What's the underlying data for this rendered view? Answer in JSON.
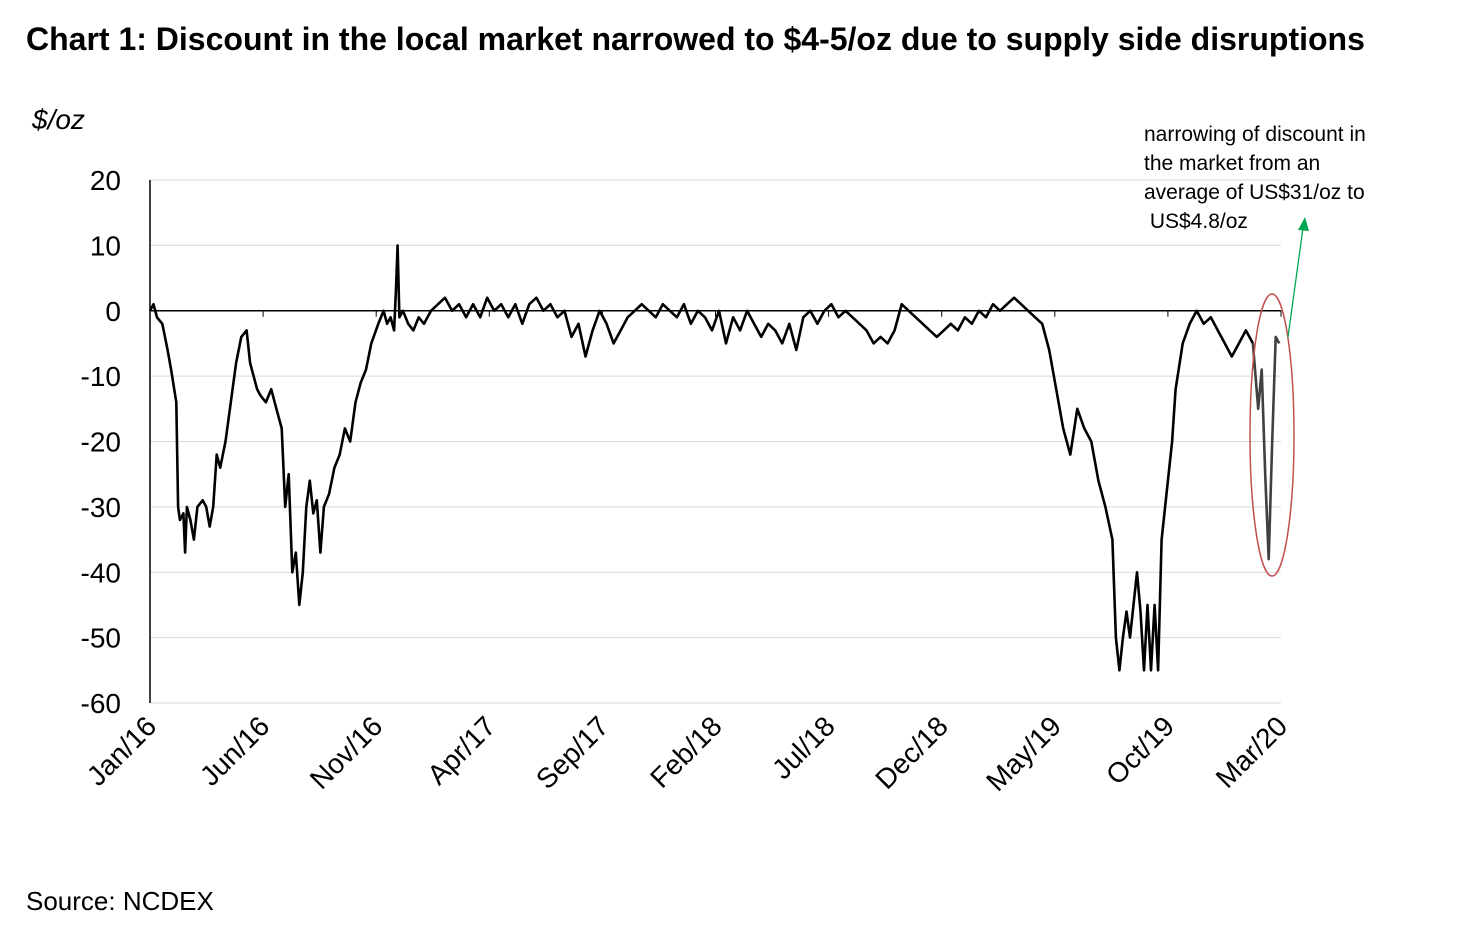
{
  "chart_data": {
    "type": "line",
    "title": "Chart 1: Discount in the local market narrowed to $4-5/oz due to supply side disruptions",
    "ylabel": "$/oz",
    "xlabel": "",
    "ylim": [
      -60,
      20
    ],
    "yticks": [
      20,
      10,
      0,
      -10,
      -20,
      -30,
      -40,
      -50,
      -60
    ],
    "xticks": [
      "Jan/16",
      "Jun/16",
      "Nov/16",
      "Apr/17",
      "Sep/17",
      "Feb/18",
      "Jul/18",
      "Dec/18",
      "May/19",
      "Oct/19",
      "Mar/20"
    ],
    "grid": true,
    "legend": "none",
    "annotation": "narrowing of discount in\nthe market from an\naverage of US$31/oz to\n US$4.8/oz",
    "colors": {
      "line": "#000000",
      "highlight": "#404040",
      "circle": "#c0504d",
      "arrow": "#00a651",
      "grid": "#d9d9d9"
    },
    "series": [
      {
        "values": [
          [
            0.0,
            0
          ],
          [
            0.1,
            1
          ],
          [
            0.2,
            -1
          ],
          [
            0.35,
            -2
          ],
          [
            0.5,
            -6
          ],
          [
            0.6,
            -9
          ],
          [
            0.75,
            -14
          ],
          [
            0.8,
            -30
          ],
          [
            0.85,
            -32
          ],
          [
            0.95,
            -31
          ],
          [
            1.0,
            -37
          ],
          [
            1.05,
            -30
          ],
          [
            1.15,
            -32
          ],
          [
            1.25,
            -35
          ],
          [
            1.35,
            -30
          ],
          [
            1.5,
            -29
          ],
          [
            1.6,
            -30
          ],
          [
            1.7,
            -33
          ],
          [
            1.8,
            -30
          ],
          [
            1.9,
            -22
          ],
          [
            2.0,
            -24
          ],
          [
            2.15,
            -20
          ],
          [
            2.3,
            -14
          ],
          [
            2.45,
            -8
          ],
          [
            2.6,
            -4
          ],
          [
            2.75,
            -3
          ],
          [
            2.85,
            -8
          ],
          [
            2.95,
            -10
          ],
          [
            3.05,
            -12
          ],
          [
            3.15,
            -13
          ],
          [
            3.3,
            -14
          ],
          [
            3.45,
            -12
          ],
          [
            3.6,
            -15
          ],
          [
            3.75,
            -18
          ],
          [
            3.85,
            -30
          ],
          [
            3.95,
            -25
          ],
          [
            4.05,
            -40
          ],
          [
            4.15,
            -37
          ],
          [
            4.25,
            -45
          ],
          [
            4.35,
            -40
          ],
          [
            4.45,
            -30
          ],
          [
            4.55,
            -26
          ],
          [
            4.65,
            -31
          ],
          [
            4.75,
            -29
          ],
          [
            4.85,
            -37
          ],
          [
            4.95,
            -30
          ],
          [
            5.1,
            -28
          ],
          [
            5.25,
            -24
          ],
          [
            5.4,
            -22
          ],
          [
            5.55,
            -18
          ],
          [
            5.7,
            -20
          ],
          [
            5.85,
            -14
          ],
          [
            6.0,
            -11
          ],
          [
            6.15,
            -9
          ],
          [
            6.3,
            -5
          ],
          [
            6.5,
            -2
          ],
          [
            6.65,
            0
          ],
          [
            6.75,
            -2
          ],
          [
            6.85,
            -1
          ],
          [
            6.95,
            -3
          ],
          [
            7.0,
            3
          ],
          [
            7.05,
            10
          ],
          [
            7.1,
            -1
          ],
          [
            7.2,
            0
          ],
          [
            7.35,
            -2
          ],
          [
            7.5,
            -3
          ],
          [
            7.65,
            -1
          ],
          [
            7.8,
            -2
          ],
          [
            8.0,
            0
          ],
          [
            8.2,
            1
          ],
          [
            8.4,
            2
          ],
          [
            8.6,
            0
          ],
          [
            8.8,
            1
          ],
          [
            9.0,
            -1
          ],
          [
            9.2,
            1
          ],
          [
            9.4,
            -1
          ],
          [
            9.6,
            2
          ],
          [
            9.8,
            0
          ],
          [
            10.0,
            1
          ],
          [
            10.2,
            -1
          ],
          [
            10.4,
            1
          ],
          [
            10.6,
            -2
          ],
          [
            10.8,
            1
          ],
          [
            11.0,
            2
          ],
          [
            11.2,
            0
          ],
          [
            11.4,
            1
          ],
          [
            11.6,
            -1
          ],
          [
            11.8,
            0
          ],
          [
            12.0,
            -4
          ],
          [
            12.2,
            -2
          ],
          [
            12.4,
            -7
          ],
          [
            12.6,
            -3
          ],
          [
            12.8,
            0
          ],
          [
            13.0,
            -2
          ],
          [
            13.2,
            -5
          ],
          [
            13.4,
            -3
          ],
          [
            13.6,
            -1
          ],
          [
            13.8,
            0
          ],
          [
            14.0,
            1
          ],
          [
            14.2,
            0
          ],
          [
            14.4,
            -1
          ],
          [
            14.6,
            1
          ],
          [
            14.8,
            0
          ],
          [
            15.0,
            -1
          ],
          [
            15.2,
            1
          ],
          [
            15.4,
            -2
          ],
          [
            15.6,
            0
          ],
          [
            15.8,
            -1
          ],
          [
            16.0,
            -3
          ],
          [
            16.2,
            0
          ],
          [
            16.4,
            -5
          ],
          [
            16.6,
            -1
          ],
          [
            16.8,
            -3
          ],
          [
            17.0,
            0
          ],
          [
            17.2,
            -2
          ],
          [
            17.4,
            -4
          ],
          [
            17.6,
            -2
          ],
          [
            17.8,
            -3
          ],
          [
            18.0,
            -5
          ],
          [
            18.2,
            -2
          ],
          [
            18.4,
            -6
          ],
          [
            18.6,
            -1
          ],
          [
            18.8,
            0
          ],
          [
            19.0,
            -2
          ],
          [
            19.2,
            0
          ],
          [
            19.4,
            1
          ],
          [
            19.6,
            -1
          ],
          [
            19.8,
            0
          ],
          [
            20.0,
            -1
          ],
          [
            20.2,
            -2
          ],
          [
            20.4,
            -3
          ],
          [
            20.6,
            -5
          ],
          [
            20.8,
            -4
          ],
          [
            21.0,
            -5
          ],
          [
            21.2,
            -3
          ],
          [
            21.4,
            1
          ],
          [
            21.6,
            0
          ],
          [
            21.8,
            -1
          ],
          [
            22.0,
            -2
          ],
          [
            22.2,
            -3
          ],
          [
            22.4,
            -4
          ],
          [
            22.6,
            -3
          ],
          [
            22.8,
            -2
          ],
          [
            23.0,
            -3
          ],
          [
            23.2,
            -1
          ],
          [
            23.4,
            -2
          ],
          [
            23.6,
            0
          ],
          [
            23.8,
            -1
          ],
          [
            24.0,
            1
          ],
          [
            24.2,
            0
          ],
          [
            24.4,
            1
          ],
          [
            24.6,
            2
          ],
          [
            24.8,
            1
          ],
          [
            25.0,
            0
          ],
          [
            25.2,
            -1
          ],
          [
            25.4,
            -2
          ],
          [
            25.6,
            -6
          ],
          [
            25.8,
            -12
          ],
          [
            26.0,
            -18
          ],
          [
            26.2,
            -22
          ],
          [
            26.4,
            -15
          ],
          [
            26.6,
            -18
          ],
          [
            26.8,
            -20
          ],
          [
            27.0,
            -26
          ],
          [
            27.2,
            -30
          ],
          [
            27.4,
            -35
          ],
          [
            27.5,
            -50
          ],
          [
            27.6,
            -55
          ],
          [
            27.7,
            -50
          ],
          [
            27.8,
            -46
          ],
          [
            27.9,
            -50
          ],
          [
            28.0,
            -45
          ],
          [
            28.1,
            -40
          ],
          [
            28.2,
            -46
          ],
          [
            28.3,
            -55
          ],
          [
            28.4,
            -45
          ],
          [
            28.5,
            -55
          ],
          [
            28.6,
            -45
          ],
          [
            28.7,
            -55
          ],
          [
            28.8,
            -35
          ],
          [
            28.9,
            -30
          ],
          [
            29.0,
            -25
          ],
          [
            29.1,
            -20
          ],
          [
            29.2,
            -12
          ],
          [
            29.4,
            -5
          ],
          [
            29.6,
            -2
          ],
          [
            29.8,
            0
          ],
          [
            30.0,
            -2
          ],
          [
            30.2,
            -1
          ],
          [
            30.4,
            -3
          ],
          [
            30.6,
            -5
          ],
          [
            30.8,
            -7
          ],
          [
            31.0,
            -5
          ],
          [
            31.2,
            -3
          ],
          [
            31.4,
            -5
          ]
        ]
      },
      {
        "values": [
          [
            31.4,
            -5
          ],
          [
            31.55,
            -15
          ],
          [
            31.65,
            -9
          ],
          [
            31.75,
            -25
          ],
          [
            31.85,
            -38
          ],
          [
            31.95,
            -20
          ],
          [
            32.05,
            -4
          ],
          [
            32.15,
            -5
          ]
        ]
      }
    ]
  },
  "footer": {
    "source": "Source: NCDEX"
  }
}
